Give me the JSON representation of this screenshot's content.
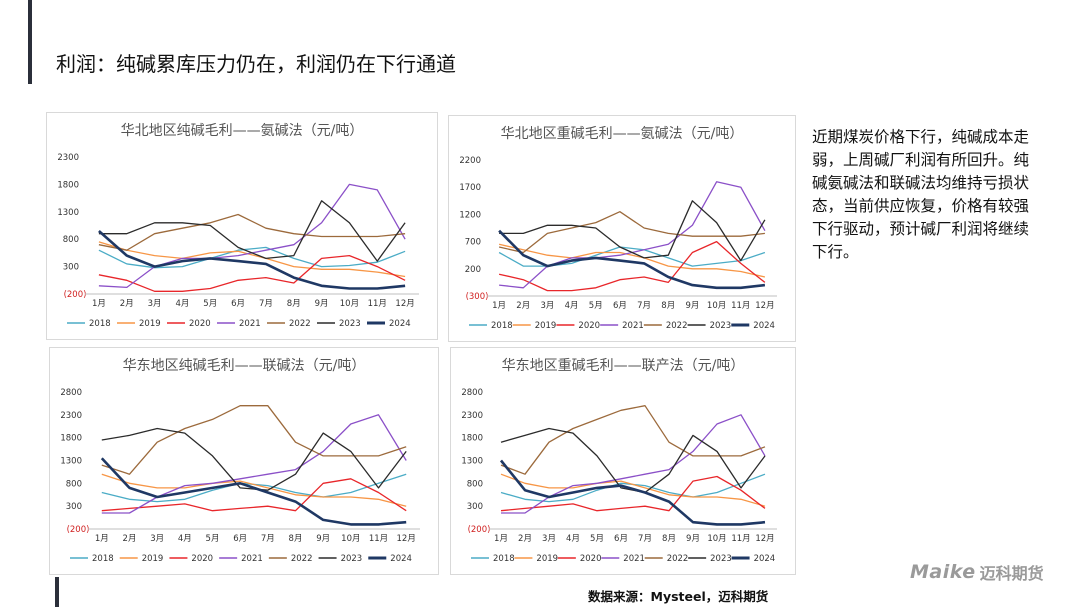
{
  "page": {
    "title": "利润：纯碱累库压力仍在，利润仍在下行通道",
    "commentary": "近期煤炭价格下行，纯碱成本走弱，上周碱厂利润有所回升。纯碱氨碱法和联碱法均维持亏损状态，当前供应恢复，价格有较强下行驱动，预计碱厂利润将继续下行。",
    "source": "数据来源：Mysteel，迈科期货",
    "logo": {
      "mark": "Maike",
      "name": "迈科期货"
    }
  },
  "colors": {
    "2018": "#4bacc6",
    "2019": "#f79646",
    "2020": "#e8262a",
    "2021": "#8b50c8",
    "2022": "#9c6a3c",
    "2023": "#2b2b2b",
    "2024": "#1f3864"
  },
  "chart_data": [
    {
      "type": "line",
      "title": "华北地区纯碱毛利——氨碱法（元/吨）",
      "categories": [
        "1月",
        "2月",
        "3月",
        "4月",
        "5月",
        "6月",
        "7月",
        "8月",
        "9月",
        "10月",
        "11月",
        "12月"
      ],
      "yticks": [
        "2300",
        "1800",
        "1300",
        "800",
        "300",
        "(200)"
      ],
      "ylim": [
        -200,
        2300
      ],
      "legend": [
        "2018",
        "2019",
        "2020",
        "2021",
        "2022",
        "2023",
        "2024"
      ],
      "series": [
        {
          "name": "2018",
          "values": [
            600,
            350,
            280,
            300,
            450,
            600,
            650,
            450,
            300,
            320,
            380,
            580
          ]
        },
        {
          "name": "2019",
          "values": [
            750,
            600,
            500,
            450,
            550,
            580,
            450,
            300,
            250,
            250,
            200,
            120
          ]
        },
        {
          "name": "2020",
          "values": [
            150,
            50,
            -150,
            -150,
            -100,
            50,
            100,
            0,
            450,
            500,
            300,
            50
          ]
        },
        {
          "name": "2021",
          "values": [
            -50,
            -80,
            300,
            450,
            450,
            500,
            600,
            700,
            1100,
            1800,
            1700,
            800
          ]
        },
        {
          "name": "2022",
          "values": [
            700,
            600,
            900,
            1000,
            1100,
            1250,
            1000,
            900,
            850,
            850,
            850,
            900
          ]
        },
        {
          "name": "2023",
          "values": [
            900,
            900,
            1100,
            1100,
            1050,
            650,
            450,
            500,
            1500,
            1100,
            400,
            1100
          ]
        },
        {
          "name": "2024",
          "values": [
            950,
            500,
            300,
            400,
            450,
            400,
            350,
            100,
            -50,
            -100,
            -100,
            -50
          ]
        }
      ]
    },
    {
      "type": "line",
      "title": "华北地区重碱毛利——氨碱法（元/吨）",
      "categories": [
        "1月",
        "2月",
        "3月",
        "4月",
        "5月",
        "6月",
        "7月",
        "8月",
        "9月",
        "10月",
        "11月",
        "12月"
      ],
      "yticks": [
        "2200",
        "1700",
        "1200",
        "700",
        "200",
        "(300)"
      ],
      "ylim": [
        -300,
        2200
      ],
      "legend": [
        "2018",
        "2019",
        "2020",
        "2021",
        "2022",
        "2023",
        "2024"
      ],
      "series": [
        {
          "name": "2018",
          "values": [
            500,
            250,
            250,
            300,
            450,
            600,
            550,
            400,
            250,
            300,
            350,
            500
          ]
        },
        {
          "name": "2019",
          "values": [
            650,
            550,
            450,
            400,
            500,
            500,
            400,
            250,
            200,
            200,
            150,
            50
          ]
        },
        {
          "name": "2020",
          "values": [
            100,
            0,
            -200,
            -200,
            -150,
            0,
            50,
            -50,
            500,
            700,
            300,
            -50
          ]
        },
        {
          "name": "2021",
          "values": [
            -100,
            -150,
            250,
            400,
            400,
            450,
            550,
            650,
            1000,
            1800,
            1700,
            900
          ]
        },
        {
          "name": "2022",
          "values": [
            600,
            500,
            850,
            950,
            1050,
            1250,
            950,
            850,
            800,
            800,
            800,
            850
          ]
        },
        {
          "name": "2023",
          "values": [
            850,
            850,
            1000,
            1000,
            950,
            600,
            400,
            450,
            1450,
            1050,
            350,
            1100
          ]
        },
        {
          "name": "2024",
          "values": [
            900,
            450,
            250,
            350,
            400,
            350,
            300,
            50,
            -100,
            -150,
            -150,
            -100
          ]
        }
      ]
    },
    {
      "type": "line",
      "title": "华东地区纯碱毛利——联碱法（元/吨）",
      "categories": [
        "1月",
        "2月",
        "3月",
        "4月",
        "5月",
        "6月",
        "7月",
        "8月",
        "9月",
        "10月",
        "11月",
        "12月"
      ],
      "yticks": [
        "2800",
        "2300",
        "1800",
        "1300",
        "800",
        "300",
        "(200)"
      ],
      "ylim": [
        -200,
        2800
      ],
      "legend": [
        "2018",
        "2019",
        "2020",
        "2021",
        "2022",
        "2023",
        "2024"
      ],
      "series": [
        {
          "name": "2018",
          "values": [
            600,
            450,
            400,
            450,
            650,
            800,
            750,
            600,
            500,
            600,
            800,
            1000
          ]
        },
        {
          "name": "2019",
          "values": [
            1000,
            800,
            700,
            700,
            800,
            850,
            700,
            550,
            500,
            500,
            450,
            300
          ]
        },
        {
          "name": "2020",
          "values": [
            200,
            250,
            300,
            350,
            200,
            250,
            300,
            200,
            800,
            900,
            600,
            200
          ]
        },
        {
          "name": "2021",
          "values": [
            150,
            150,
            500,
            750,
            800,
            900,
            1000,
            1100,
            1500,
            2100,
            2300,
            1300
          ]
        },
        {
          "name": "2022",
          "values": [
            1200,
            1000,
            1700,
            2000,
            2200,
            2500,
            2500,
            1700,
            1400,
            1400,
            1400,
            1600
          ]
        },
        {
          "name": "2023",
          "values": [
            1750,
            1850,
            2000,
            1900,
            1400,
            700,
            650,
            1000,
            1900,
            1500,
            700,
            1500
          ]
        },
        {
          "name": "2024",
          "values": [
            1350,
            700,
            500,
            600,
            700,
            800,
            600,
            400,
            0,
            -100,
            -100,
            -50
          ]
        }
      ]
    },
    {
      "type": "line",
      "title": "华东地区重碱毛利——联产法（元/吨）",
      "categories": [
        "1月",
        "2月",
        "3月",
        "4月",
        "5月",
        "6月",
        "7月",
        "8月",
        "9月",
        "10月",
        "11月",
        "12月"
      ],
      "yticks": [
        "2800",
        "2300",
        "1800",
        "1300",
        "800",
        "300",
        "(200)"
      ],
      "ylim": [
        -200,
        2800
      ],
      "legend": [
        "2018",
        "2019",
        "2020",
        "2021",
        "2022",
        "2023",
        "2024"
      ],
      "series": [
        {
          "name": "2018",
          "values": [
            600,
            450,
            400,
            450,
            650,
            800,
            750,
            600,
            500,
            600,
            800,
            1000
          ]
        },
        {
          "name": "2019",
          "values": [
            1000,
            800,
            700,
            700,
            800,
            850,
            700,
            550,
            500,
            500,
            450,
            300
          ]
        },
        {
          "name": "2020",
          "values": [
            200,
            250,
            300,
            350,
            200,
            250,
            300,
            200,
            850,
            950,
            650,
            250
          ]
        },
        {
          "name": "2021",
          "values": [
            150,
            150,
            500,
            750,
            800,
            900,
            1000,
            1100,
            1500,
            2100,
            2300,
            1400
          ]
        },
        {
          "name": "2022",
          "values": [
            1200,
            1000,
            1700,
            2000,
            2200,
            2400,
            2500,
            1700,
            1400,
            1400,
            1400,
            1600
          ]
        },
        {
          "name": "2023",
          "values": [
            1700,
            1850,
            2000,
            1900,
            1400,
            700,
            600,
            1000,
            1850,
            1500,
            700,
            1400
          ]
        },
        {
          "name": "2024",
          "values": [
            1300,
            650,
            500,
            600,
            700,
            750,
            600,
            400,
            -50,
            -100,
            -100,
            -50
          ]
        }
      ]
    }
  ]
}
